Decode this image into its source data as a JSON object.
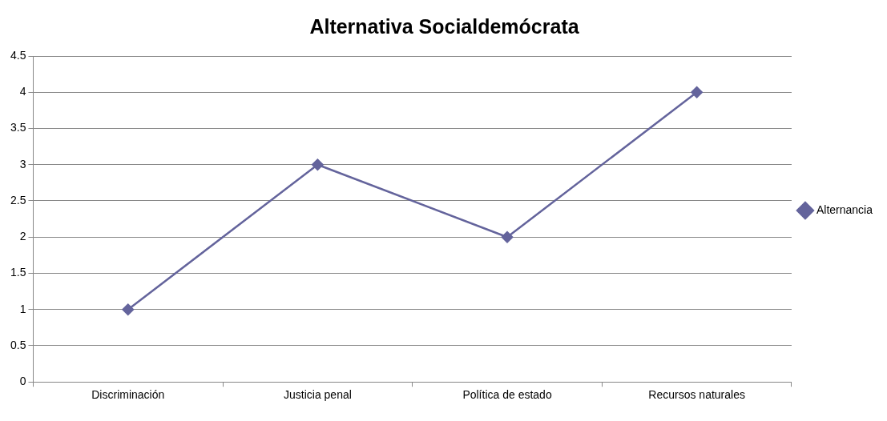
{
  "chart_data": {
    "type": "line",
    "title": "Alternativa Socialdemócrata",
    "categories": [
      "Discriminación",
      "Justicia penal",
      "Política de estado",
      "Recursos naturales"
    ],
    "series": [
      {
        "name": "Alternancia",
        "color": "#64649c",
        "values": [
          1,
          3,
          2,
          4
        ]
      }
    ],
    "ylim": [
      0,
      4.5
    ],
    "yticks": [
      0,
      0.5,
      1,
      1.5,
      2,
      2.5,
      3,
      3.5,
      4,
      4.5
    ],
    "grid": "y",
    "legend": "right",
    "marker": "diamond",
    "line_style": "solid"
  }
}
